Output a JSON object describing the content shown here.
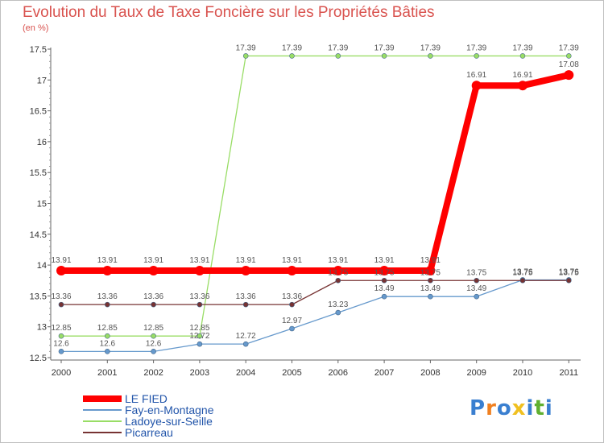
{
  "chart_data": {
    "type": "line",
    "title": "Evolution du Taux de Taxe Foncière sur les Propriétés Bâties",
    "ylabel": "(en %)",
    "xlabel": "",
    "x": [
      "2000",
      "2001",
      "2002",
      "2003",
      "2004",
      "2005",
      "2006",
      "2007",
      "2008",
      "2009",
      "2010",
      "2011"
    ],
    "yticks": [
      "12.5",
      "13",
      "13.5",
      "14",
      "14.5",
      "15",
      "15.5",
      "16",
      "16.5",
      "17",
      "17.5"
    ],
    "ylim": [
      12.5,
      17.5
    ],
    "legend_position": "bottom-left",
    "series": [
      {
        "name": "LE FIED",
        "color": "#ff0000",
        "values": [
          13.91,
          13.91,
          13.91,
          13.91,
          13.91,
          13.91,
          13.91,
          13.91,
          13.91,
          16.91,
          16.91,
          17.08
        ],
        "labels": [
          "13.91",
          "13.91",
          "13.91",
          "13.91",
          "13.91",
          "13.91",
          "13.91",
          "13.91",
          "13.91",
          "16.91",
          "16.91",
          "17.08"
        ]
      },
      {
        "name": "Fay-en-Montagne",
        "color": "#6699cc",
        "values": [
          12.6,
          12.6,
          12.6,
          12.72,
          12.72,
          12.97,
          13.23,
          13.49,
          13.49,
          13.49,
          13.76,
          13.76
        ],
        "labels": [
          "12.6",
          "12.6",
          "12.6",
          "12.72",
          "12.72",
          "12.97",
          "13.23",
          "13.49",
          "13.49",
          "13.49",
          "13.76",
          "13.76"
        ]
      },
      {
        "name": "Ladoye-sur-Seille",
        "color": "#99dd66",
        "values": [
          12.85,
          12.85,
          12.85,
          12.85,
          17.39,
          17.39,
          17.39,
          17.39,
          17.39,
          17.39,
          17.39,
          17.39
        ],
        "labels": [
          "12.85",
          "12.85",
          "12.85",
          "12.85",
          "17.39",
          "17.39",
          "17.39",
          "17.39",
          "17.39",
          "17.39",
          "17.39",
          "17.39"
        ]
      },
      {
        "name": "Picarreau",
        "color": "#773333",
        "values": [
          13.36,
          13.36,
          13.36,
          13.36,
          13.36,
          13.36,
          13.75,
          13.75,
          13.75,
          13.75,
          13.75,
          13.75
        ],
        "labels": [
          "13.36",
          "13.36",
          "13.36",
          "13.36",
          "13.36",
          "13.36",
          "13.75",
          "13.75",
          "13.75",
          "13.75",
          "13.75",
          "13.75"
        ]
      }
    ]
  },
  "brand": {
    "letters": [
      "P",
      "r",
      "o",
      "x",
      "i",
      "t",
      "i"
    ],
    "colors": [
      "#3a7fd0",
      "#f08020",
      "#3a7fd0",
      "#f0c020",
      "#3a7fd0",
      "#60b030",
      "#3a7fd0"
    ]
  }
}
